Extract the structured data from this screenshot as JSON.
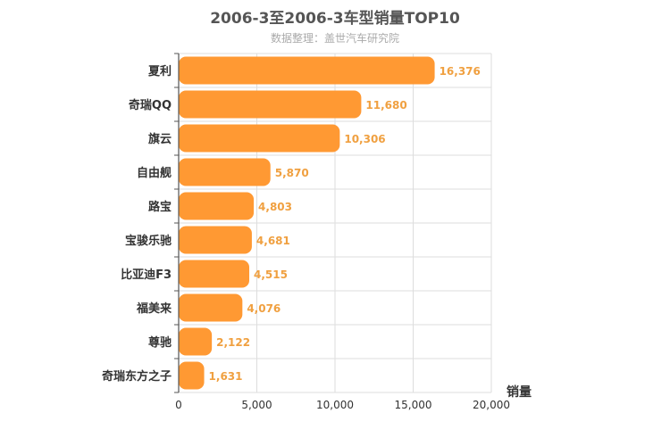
{
  "chart_data": {
    "type": "bar",
    "orientation": "horizontal",
    "title": "2006-3至2006-3车型销量TOP10",
    "subtitle": "数据整理：盖世汽车研究院",
    "xlabel": "销量",
    "ylabel": "",
    "xlim": [
      0,
      20000
    ],
    "x_ticks": [
      0,
      5000,
      10000,
      15000,
      20000
    ],
    "x_tick_labels": [
      "0",
      "5,000",
      "10,000",
      "15,000",
      "20,000"
    ],
    "grid": true,
    "categories": [
      "夏利",
      "奇瑞QQ",
      "旗云",
      "自由舰",
      "路宝",
      "宝骏乐驰",
      "比亚迪F3",
      "福美来",
      "尊驰",
      "奇瑞东方之子"
    ],
    "values": [
      16376,
      11680,
      10306,
      5870,
      4803,
      4681,
      4515,
      4076,
      2122,
      1631
    ],
    "value_labels": [
      "16,376",
      "11,680",
      "10,306",
      "5,870",
      "4,803",
      "4,681",
      "4,515",
      "4,076",
      "2,122",
      "1,631"
    ],
    "bar_color": "#ff9933",
    "label_color": "#f0a040"
  }
}
